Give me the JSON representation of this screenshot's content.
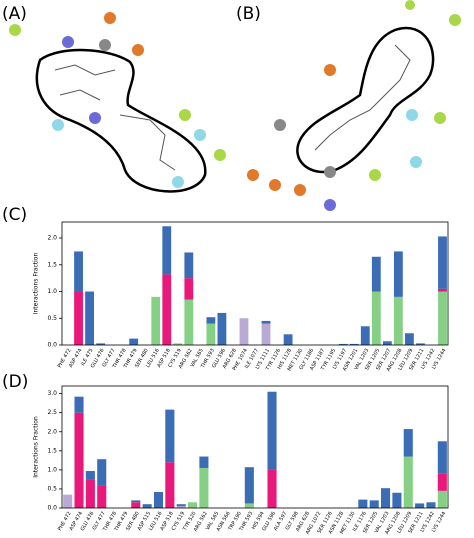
{
  "panels": {
    "a": {
      "label": "(A)"
    },
    "b": {
      "label": "(B)"
    }
  },
  "chart_data": [
    {
      "type": "bar",
      "panel_label": "(C)",
      "y_label": "Interactions Fraction",
      "categories": [
        "PHE 472",
        "ASP 474",
        "ILE 475",
        "GLU 476",
        "GLY 477",
        "THR 478",
        "THR 479",
        "SER 480",
        "LEU 516",
        "ASP 518",
        "CYS 519",
        "ARG 562",
        "VAL 565",
        "THR 593",
        "GLU 596",
        "ARG 628",
        "PHE 1074",
        "ILE 1077",
        "LYS 1111",
        "TYR 1126",
        "HIS 1128",
        "MET 1130",
        "GLY 1186",
        "ASP 1187",
        "TYR 1195",
        "LYS 1197",
        "ASN 1201",
        "VAL 1203",
        "SER 1205",
        "SER 1207",
        "ARG 1208",
        "LEU 1209",
        "SER 1211",
        "LYS 1242",
        "LYS 1244"
      ],
      "series": [
        {
          "color": "#b8a9d6",
          "values": [
            0,
            0,
            0,
            0,
            0,
            0,
            0,
            0,
            0,
            0,
            0,
            0,
            0,
            0,
            0,
            0,
            0.5,
            0,
            0.4,
            0,
            0,
            0,
            0,
            0,
            0,
            0,
            0,
            0,
            0,
            0,
            0,
            0,
            0,
            0,
            0
          ]
        },
        {
          "color": "#85d085",
          "values": [
            0,
            0,
            0,
            0,
            0,
            0,
            0,
            0,
            0.9,
            0,
            0.03,
            0.85,
            0,
            0.4,
            0,
            0,
            0,
            0,
            0,
            0,
            0,
            0,
            0,
            0,
            0,
            0,
            0,
            0,
            1.0,
            0,
            0.9,
            0,
            0,
            0,
            1.0
          ]
        },
        {
          "color": "#e8197a",
          "values": [
            0,
            1.0,
            0,
            0,
            0,
            0,
            0,
            0,
            0,
            1.32,
            0,
            0.4,
            0,
            0,
            0,
            0,
            0,
            0,
            0,
            0,
            0,
            0,
            0,
            0,
            0,
            0,
            0,
            0,
            0,
            0,
            0,
            0,
            0,
            0,
            0.05
          ]
        },
        {
          "color": "#3a6db5",
          "values": [
            0,
            0.75,
            1.0,
            0.03,
            0,
            0,
            0.12,
            0,
            0,
            0.9,
            0,
            0.48,
            0,
            0.12,
            0.6,
            0,
            0,
            0,
            0.05,
            0,
            0.2,
            0,
            0,
            0,
            0,
            0.02,
            0.02,
            0.35,
            0.65,
            0.07,
            0.85,
            0.22,
            0.03,
            0,
            0.98
          ]
        }
      ],
      "ylim": [
        0,
        2.3
      ],
      "yticks": [
        {
          "value": 0,
          "label": "0.0"
        },
        {
          "value": 0.5,
          "label": "0.5"
        },
        {
          "value": 1,
          "label": "1.0"
        },
        {
          "value": 1.5,
          "label": "1.5"
        },
        {
          "value": 2,
          "label": "2.0"
        }
      ]
    },
    {
      "type": "bar",
      "panel_label": "(D)",
      "y_label": "Interactions Fraction",
      "categories": [
        "PHE 472",
        "ASP 474",
        "GLU 476",
        "GLY 477",
        "THR 478",
        "THR 479",
        "SER 480",
        "ASP 515",
        "LEU 516",
        "ASP 518",
        "CYS 519",
        "TYR 520",
        "ARG 562",
        "VAL 565",
        "ASN 566",
        "TRP 590",
        "THR 593",
        "HIS 594",
        "GLU 596",
        "ALA 597",
        "GLY 598",
        "ARG 628",
        "ARG 1072",
        "SER 1126",
        "ASN 1128",
        "MET 1130",
        "ILE 1176",
        "SER 1205",
        "VAL 1203",
        "ARG 1208",
        "LEU 1209",
        "SER 1211",
        "LYS 1242",
        "LYS 1244"
      ],
      "series": [
        {
          "color": "#b8a9d6",
          "values": [
            0.35,
            0,
            0,
            0,
            0,
            0,
            0,
            0,
            0,
            0,
            0.05,
            0,
            0,
            0,
            0,
            0,
            0,
            0,
            0,
            0,
            0,
            0,
            0,
            0,
            0,
            0,
            0,
            0,
            0,
            0,
            0,
            0,
            0,
            0
          ]
        },
        {
          "color": "#85d085",
          "values": [
            0,
            0,
            0,
            0,
            0,
            0,
            0,
            0,
            0,
            0,
            0,
            0.15,
            1.05,
            0,
            0,
            0,
            0.12,
            0,
            0,
            0,
            0,
            0,
            0,
            0,
            0,
            0,
            0,
            0,
            0,
            0,
            1.35,
            0,
            0,
            0.45
          ]
        },
        {
          "color": "#e8197a",
          "values": [
            0,
            2.5,
            0.75,
            0.6,
            0,
            0,
            0.15,
            0,
            0,
            1.2,
            0,
            0,
            0,
            0,
            0,
            0,
            0,
            0,
            1.0,
            0,
            0,
            0,
            0,
            0,
            0,
            0,
            0,
            0,
            0,
            0,
            0,
            0,
            0,
            0.45
          ]
        },
        {
          "color": "#3a6db5",
          "values": [
            0,
            0.42,
            0.22,
            0.68,
            0,
            0,
            0.05,
            0.1,
            0.42,
            1.38,
            0.05,
            0,
            0.3,
            0,
            0,
            0,
            0.95,
            0,
            2.05,
            0,
            0,
            0,
            0,
            0,
            0,
            0,
            0.22,
            0.2,
            0.52,
            0.4,
            0.72,
            0.12,
            0.15,
            0.85
          ]
        }
      ],
      "ylim": [
        0,
        3.2
      ],
      "yticks": [
        {
          "value": 0,
          "label": "0.0"
        },
        {
          "value": 0.5,
          "label": "0.5"
        },
        {
          "value": 1,
          "label": "1.0"
        },
        {
          "value": 1.5,
          "label": "1.5"
        },
        {
          "value": 2,
          "label": "2.0"
        },
        {
          "value": 2.5,
          "label": "2.5"
        },
        {
          "value": 3,
          "label": "3.0"
        }
      ]
    }
  ]
}
